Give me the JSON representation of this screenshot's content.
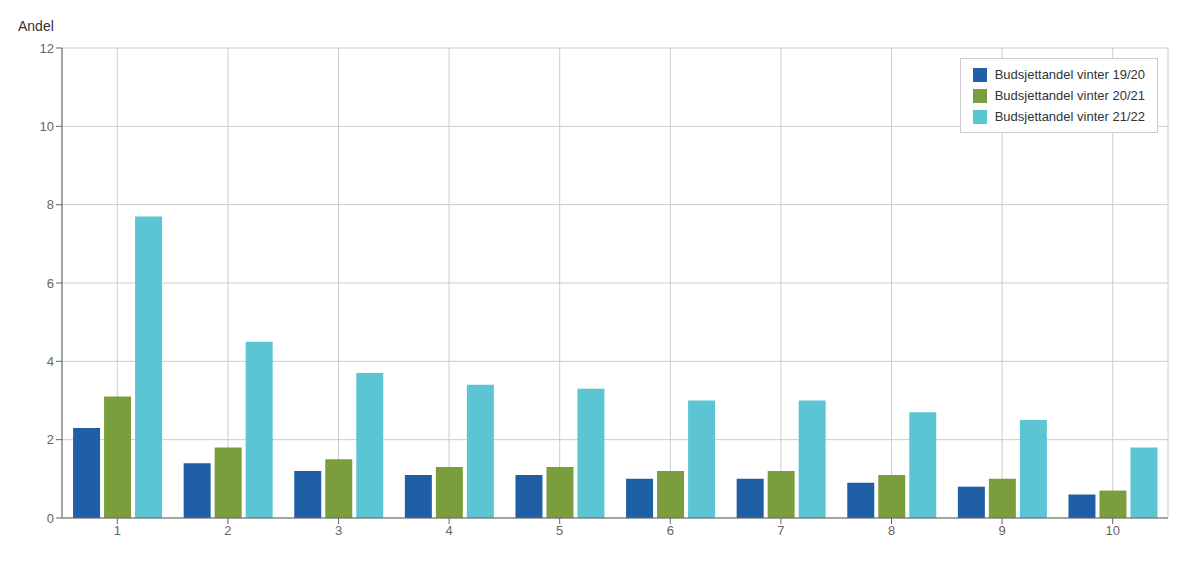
{
  "chart_data": {
    "type": "bar",
    "ylabel": "Andel",
    "categories": [
      1,
      2,
      3,
      4,
      5,
      6,
      7,
      8,
      9,
      10
    ],
    "series": [
      {
        "name": "Budsjettandel vinter 19/20",
        "color": "#1f5fa6",
        "values": [
          2.3,
          1.4,
          1.2,
          1.1,
          1.1,
          1.0,
          1.0,
          0.9,
          0.8,
          0.6
        ]
      },
      {
        "name": "Budsjettandel vinter 20/21",
        "color": "#7a9e3b",
        "values": [
          3.1,
          1.8,
          1.5,
          1.3,
          1.3,
          1.2,
          1.2,
          1.1,
          1.0,
          0.7
        ]
      },
      {
        "name": "Budsjettandel vinter 21/22",
        "color": "#5bc5d4",
        "values": [
          7.7,
          4.5,
          3.7,
          3.4,
          3.3,
          3.0,
          3.0,
          2.7,
          2.5,
          1.8
        ]
      }
    ],
    "ylim": [
      0,
      12
    ],
    "yticks": [
      0,
      2,
      4,
      6,
      8,
      10,
      12
    ],
    "grid": true,
    "legend": "upper right"
  }
}
